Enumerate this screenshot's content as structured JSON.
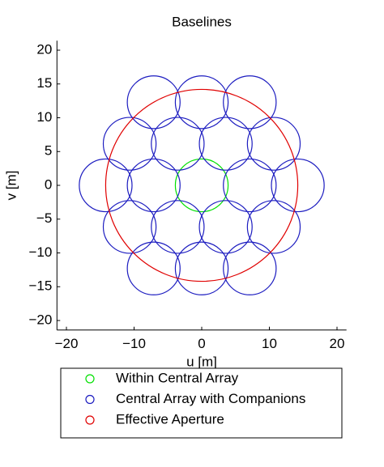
{
  "chart_data": {
    "type": "circles",
    "title": "Baselines",
    "xlabel": "u [m]",
    "ylabel": "v [m]",
    "xlim": [
      -21.4,
      21.4
    ],
    "ylim": [
      -21.4,
      21.4
    ],
    "xticks": [
      {
        "value": -20,
        "label": "−20"
      },
      {
        "value": -10,
        "label": "−10"
      },
      0,
      10,
      20
    ],
    "yticks": [
      {
        "value": -20,
        "label": "−20"
      },
      {
        "value": -15,
        "label": "−15"
      },
      {
        "value": -10,
        "label": "−10"
      },
      {
        "value": -5,
        "label": "−5"
      },
      0,
      5,
      10,
      15,
      20
    ],
    "series": [
      {
        "name": "Within Central Array",
        "color": "#00e000",
        "x": [
          0
        ],
        "y": [
          0
        ],
        "r": [
          3.9
        ]
      },
      {
        "name": "Central Array with Companions",
        "color": "#1c1cc0",
        "x": [
          7.1,
          -7.1,
          3.55,
          -3.55,
          3.55,
          -3.55,
          14.2,
          -14.2,
          7.1,
          -7.1,
          7.1,
          -7.1,
          0,
          0,
          10.65,
          -10.65,
          10.65,
          -10.65
        ],
        "y": [
          0,
          0,
          6.15,
          6.15,
          -6.15,
          -6.15,
          0,
          0,
          12.3,
          12.3,
          -12.3,
          -12.3,
          12.3,
          -12.3,
          6.15,
          6.15,
          -6.15,
          -6.15
        ],
        "r": [
          3.9,
          3.9,
          3.9,
          3.9,
          3.9,
          3.9,
          3.9,
          3.9,
          3.9,
          3.9,
          3.9,
          3.9,
          3.9,
          3.9,
          3.9,
          3.9,
          3.9,
          3.9
        ]
      },
      {
        "name": "Effective Aperture",
        "color": "#e00000",
        "x": [
          0
        ],
        "y": [
          0
        ],
        "r": [
          14.2
        ]
      }
    ]
  }
}
